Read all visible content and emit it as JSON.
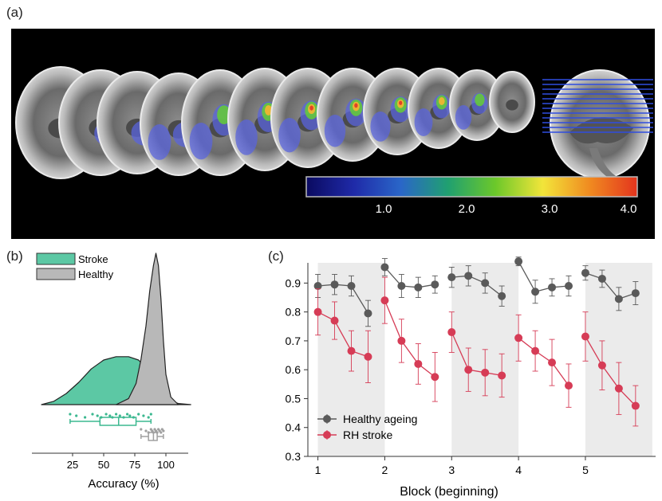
{
  "panel_a": {
    "label": "(a)",
    "colorbar": {
      "ticks": [
        "1.0",
        "2.0",
        "3.0",
        "4.0"
      ],
      "colors": [
        "#0a0a60",
        "#1f2aa8",
        "#2a66c8",
        "#20a070",
        "#6cc82a",
        "#f2e53a",
        "#f08a20",
        "#e3341e"
      ]
    }
  },
  "panel_b": {
    "label": "(b)",
    "xlabel": "Accuracy (%)",
    "xticks": [
      "25",
      "50",
      "75",
      "100"
    ],
    "legend": [
      {
        "name": "Stroke",
        "color": "#5cc8a4"
      },
      {
        "name": "Healthy",
        "color": "#b8b8b8"
      }
    ]
  },
  "panel_c": {
    "label": "(c)",
    "xlabel": "Block (beginning)",
    "legend_healthy": "Healthy ageing",
    "legend_stroke": "RH stroke",
    "color_healthy": "#5a5a5a",
    "color_stroke": "#d63c56"
  },
  "chart_data": [
    {
      "type": "area",
      "panel": "b",
      "xlabel": "Accuracy (%)",
      "x_ticks": [
        25,
        50,
        75,
        100
      ],
      "series": [
        {
          "name": "Stroke",
          "density_x": [
            0,
            10,
            20,
            30,
            40,
            50,
            60,
            70,
            78,
            84,
            90,
            96,
            102,
            110,
            120
          ],
          "density_y": [
            0.0,
            0.03,
            0.1,
            0.2,
            0.32,
            0.4,
            0.43,
            0.43,
            0.4,
            0.33,
            0.22,
            0.1,
            0.04,
            0.01,
            0.0
          ],
          "points": [
            23,
            28,
            35,
            41,
            45,
            48,
            52,
            55,
            57,
            60,
            63,
            66,
            69,
            71,
            74,
            78,
            82,
            86,
            88
          ],
          "box": {
            "whisker_low": 23,
            "q1": 47,
            "median": 62,
            "q3": 76,
            "whisker_high": 88
          }
        },
        {
          "name": "Healthy",
          "density_x": [
            60,
            70,
            76,
            80,
            84,
            87,
            90,
            92,
            94,
            96,
            98,
            100,
            104,
            110
          ],
          "density_y": [
            0.0,
            0.04,
            0.14,
            0.3,
            0.52,
            0.75,
            0.92,
            1.0,
            0.92,
            0.7,
            0.42,
            0.2,
            0.05,
            0.0
          ],
          "points": [
            80,
            84,
            86,
            88,
            89,
            90,
            91,
            92,
            93,
            94,
            95,
            96,
            97,
            98
          ],
          "box": {
            "whisker_low": 80,
            "q1": 86,
            "median": 90,
            "q3": 93,
            "whisker_high": 98
          }
        }
      ]
    },
    {
      "type": "line",
      "panel": "c",
      "xlabel": "Block (beginning)",
      "x_ticks": [
        1,
        2,
        3,
        4,
        5
      ],
      "y_ticks": [
        0.3,
        0.4,
        0.5,
        0.6,
        0.7,
        0.8,
        0.9
      ],
      "ylim": [
        0.3,
        0.97
      ],
      "xlim": [
        0.85,
        6.05
      ],
      "shaded_blocks": [
        [
          1,
          2
        ],
        [
          3,
          4
        ],
        [
          5,
          6
        ]
      ],
      "segments_x": [
        [
          1.0,
          1.25,
          1.5,
          1.75
        ],
        [
          2.0,
          2.25,
          2.5,
          2.75
        ],
        [
          3.0,
          3.25,
          3.5,
          3.75
        ],
        [
          4.0,
          4.25,
          4.5,
          4.75
        ],
        [
          5.0,
          5.25,
          5.5,
          5.75
        ]
      ],
      "series": [
        {
          "name": "Healthy ageing",
          "values": [
            [
              0.89,
              0.895,
              0.89,
              0.795
            ],
            [
              0.955,
              0.89,
              0.885,
              0.895
            ],
            [
              0.92,
              0.925,
              0.9,
              0.855
            ],
            [
              0.975,
              0.87,
              0.885,
              0.89
            ],
            [
              0.935,
              0.915,
              0.845,
              0.865
            ]
          ],
          "errors": [
            [
              0.04,
              0.035,
              0.035,
              0.045
            ],
            [
              0.03,
              0.04,
              0.035,
              0.03
            ],
            [
              0.035,
              0.035,
              0.035,
              0.035
            ],
            [
              0.015,
              0.04,
              0.03,
              0.035
            ],
            [
              0.025,
              0.03,
              0.04,
              0.04
            ]
          ]
        },
        {
          "name": "RH stroke",
          "values": [
            [
              0.8,
              0.77,
              0.665,
              0.645
            ],
            [
              0.84,
              0.7,
              0.62,
              0.575
            ],
            [
              0.73,
              0.6,
              0.59,
              0.58
            ],
            [
              0.71,
              0.665,
              0.625,
              0.545
            ],
            [
              0.715,
              0.615,
              0.535,
              0.475
            ]
          ],
          "errors": [
            [
              0.08,
              0.065,
              0.07,
              0.09
            ],
            [
              0.08,
              0.075,
              0.07,
              0.085
            ],
            [
              0.07,
              0.075,
              0.08,
              0.075
            ],
            [
              0.08,
              0.07,
              0.08,
              0.075
            ],
            [
              0.085,
              0.085,
              0.09,
              0.07
            ]
          ]
        }
      ]
    }
  ]
}
